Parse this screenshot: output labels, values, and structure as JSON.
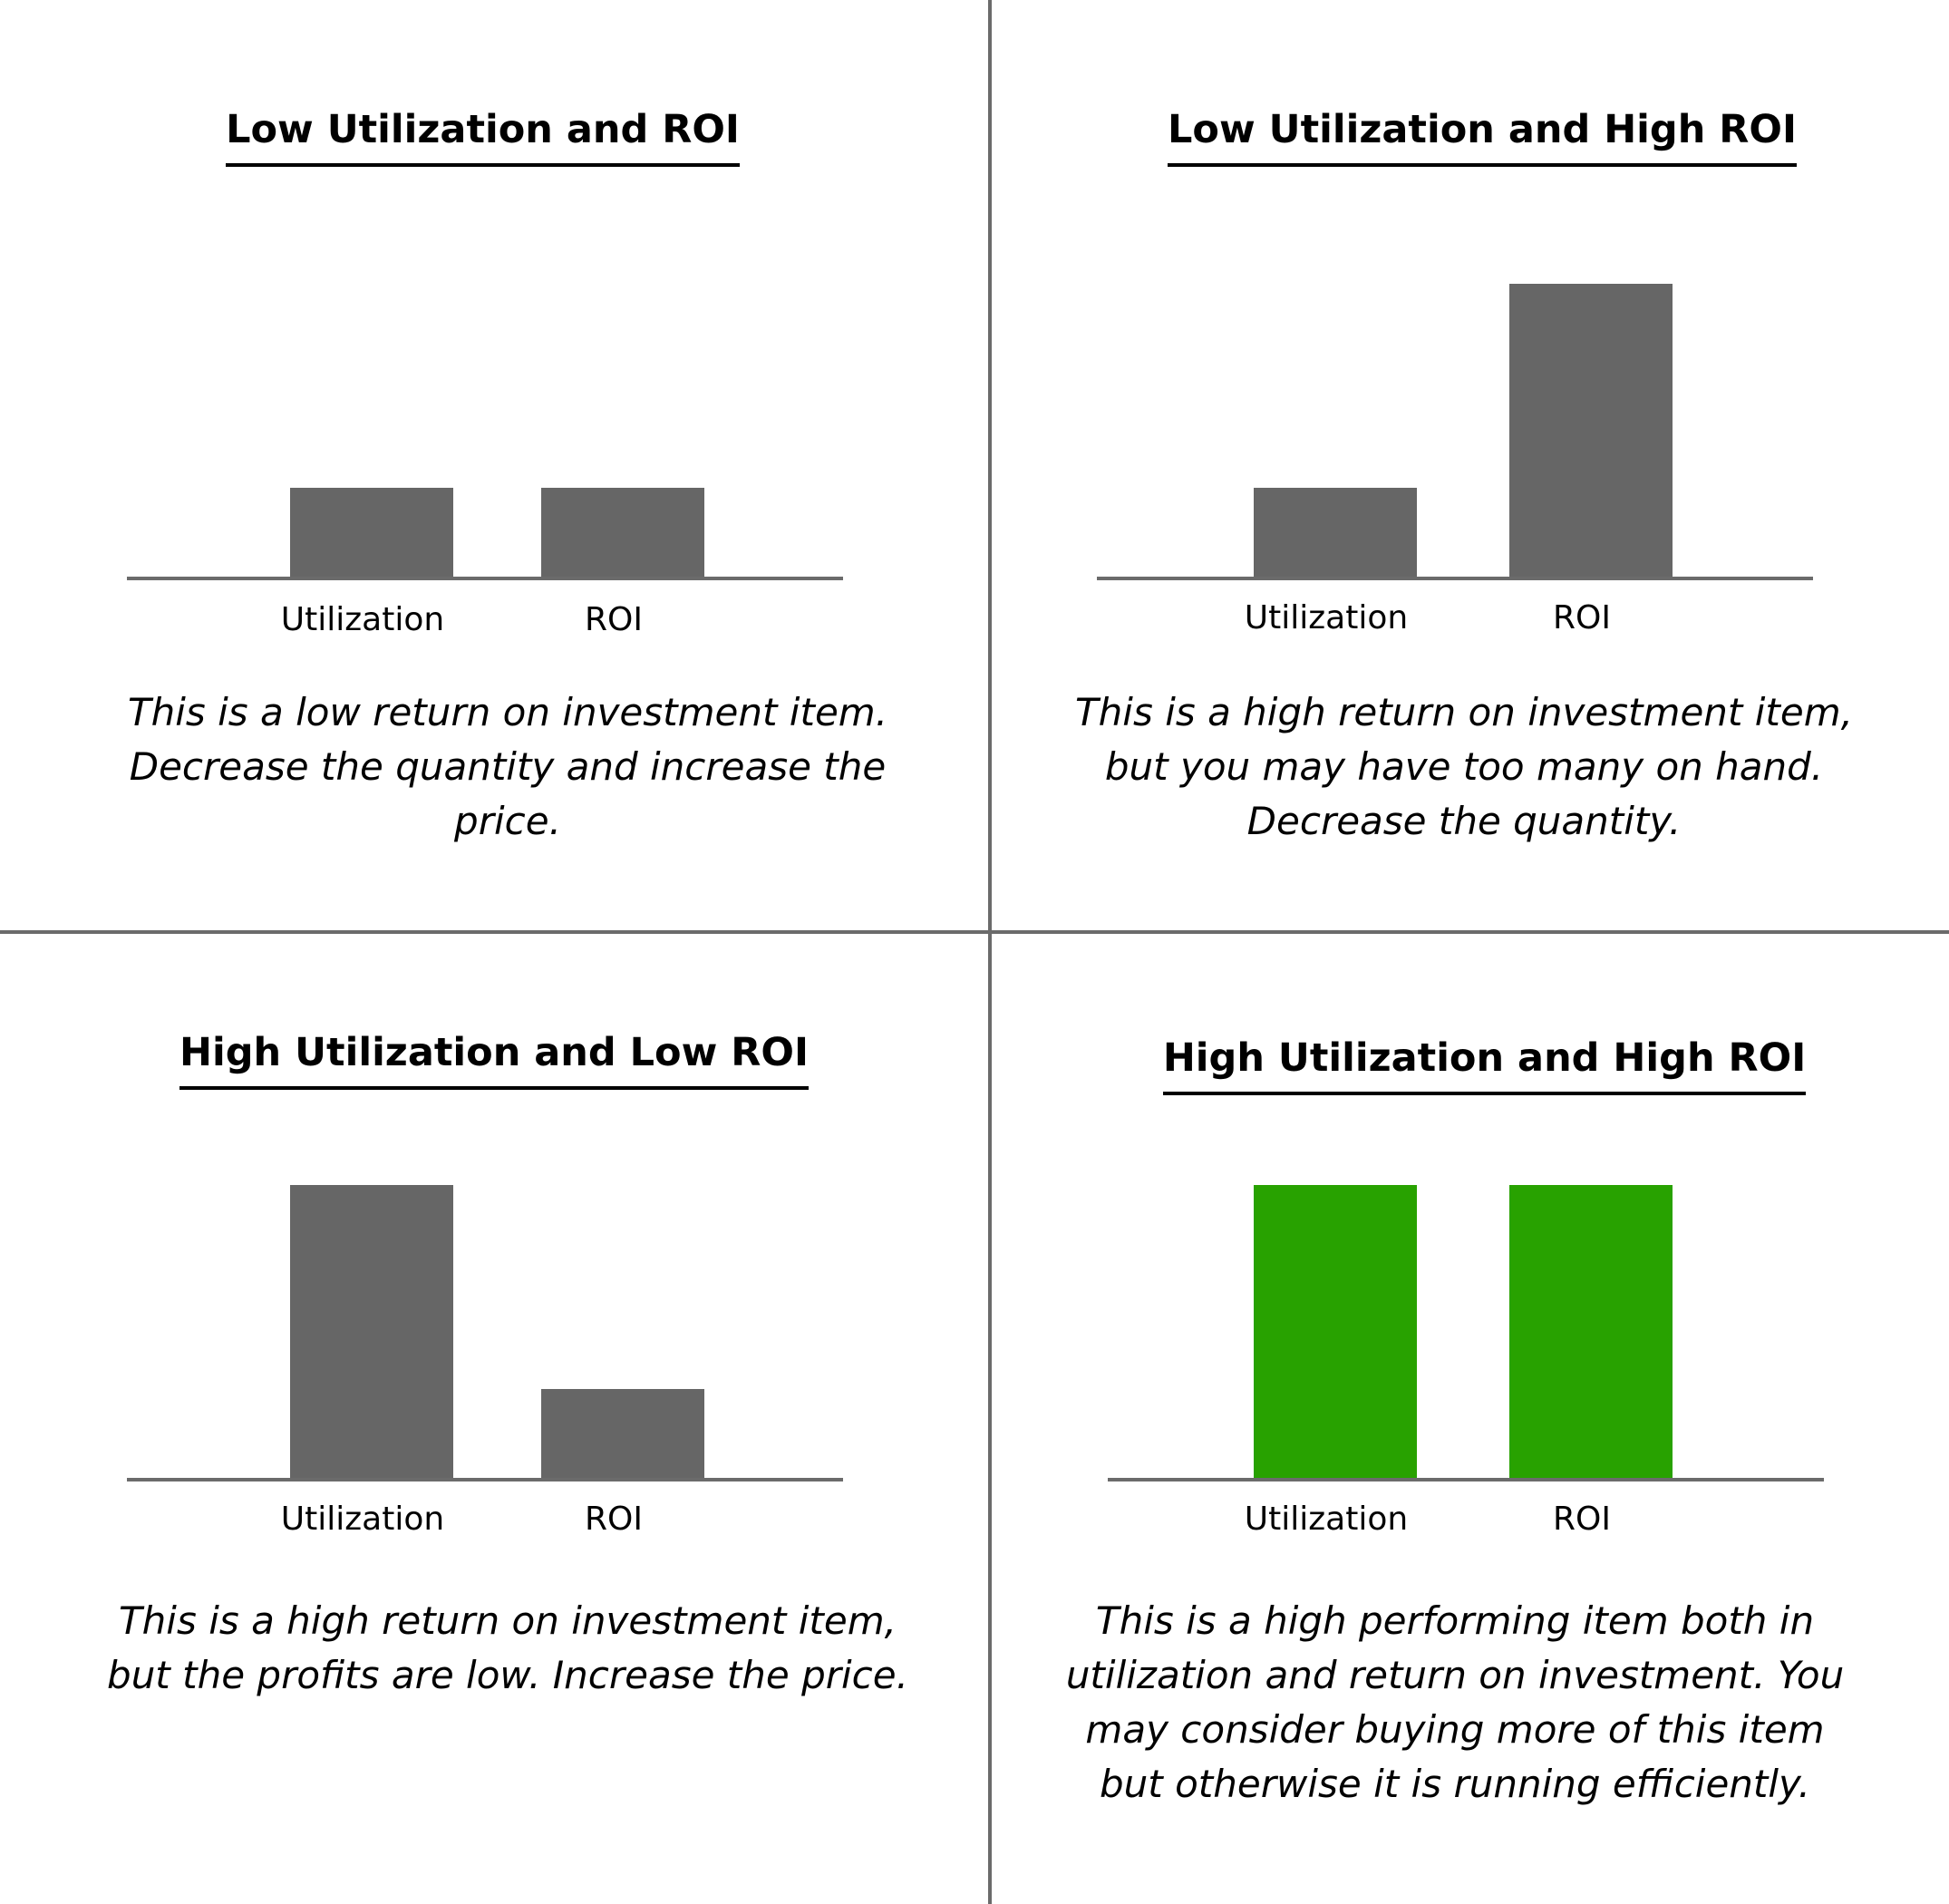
{
  "colors": {
    "bar_default": "#666666",
    "bar_highlight": "#28a200",
    "axis": "#6b6b6b"
  },
  "chart_data": [
    {
      "type": "bar",
      "title": "Low Utilization and ROI",
      "categories": [
        "Utilization",
        "ROI"
      ],
      "values": [
        1,
        1
      ],
      "ylim": [
        0,
        3.3
      ],
      "color": "#666666",
      "description": "This is a low return on investment item. Decrease the quantity and increase the price."
    },
    {
      "type": "bar",
      "title": "Low Utilization and High ROI",
      "categories": [
        "Utilization",
        "ROI"
      ],
      "values": [
        1,
        3.25
      ],
      "ylim": [
        0,
        3.3
      ],
      "color": "#666666",
      "description": "This is a high return on investment item, but you may have too many on hand. Decrease the quantity."
    },
    {
      "type": "bar",
      "title": "High Utilization and Low ROI",
      "categories": [
        "Utilization",
        "ROI"
      ],
      "values": [
        3.25,
        1
      ],
      "ylim": [
        0,
        3.3
      ],
      "color": "#666666",
      "description": "This is a high return on investment item, but the profits are low. Increase the price."
    },
    {
      "type": "bar",
      "title": "High Utilization and High ROI",
      "categories": [
        "Utilization",
        "ROI"
      ],
      "values": [
        3.25,
        3.25
      ],
      "ylim": [
        0,
        3.3
      ],
      "color": "#28a200",
      "description": "This is a high performing item both in utilization and return on investment. You may consider buying more of this item but otherwise it is running efficiently."
    }
  ]
}
